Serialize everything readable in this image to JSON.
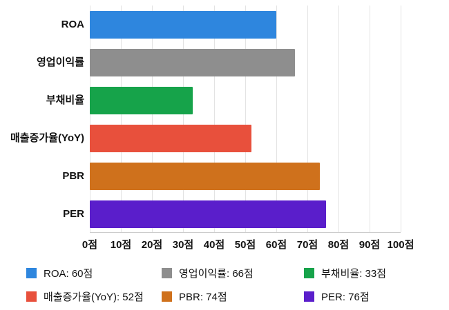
{
  "chart_data": {
    "type": "bar",
    "orientation": "horizontal",
    "title": "",
    "xlabel": "",
    "ylabel": "",
    "categories": [
      "ROA",
      "영업이익률",
      "부채비율",
      "매출증가율(YoY)",
      "PBR",
      "PER"
    ],
    "values": [
      60,
      66,
      33,
      52,
      74,
      76
    ],
    "colors": [
      "#2E86DE",
      "#8E8E8E",
      "#16A34A",
      "#E8503C",
      "#CF711C",
      "#5A1ECB"
    ],
    "value_suffix": "점",
    "xlim": [
      0,
      100
    ],
    "x_ticks": [
      0,
      10,
      20,
      30,
      40,
      50,
      60,
      70,
      80,
      90,
      100
    ],
    "tick_suffix": "점",
    "grid": true,
    "legend_position": "bottom",
    "legend": [
      {
        "label": "ROA: 60점",
        "color": "#2E86DE"
      },
      {
        "label": "영업이익률: 66점",
        "color": "#8E8E8E"
      },
      {
        "label": "부채비율: 33점",
        "color": "#16A34A"
      },
      {
        "label": "매출증가율(YoY): 52점",
        "color": "#E8503C"
      },
      {
        "label": "PBR: 74점",
        "color": "#CF711C"
      },
      {
        "label": "PER: 76점",
        "color": "#5A1ECB"
      }
    ]
  }
}
